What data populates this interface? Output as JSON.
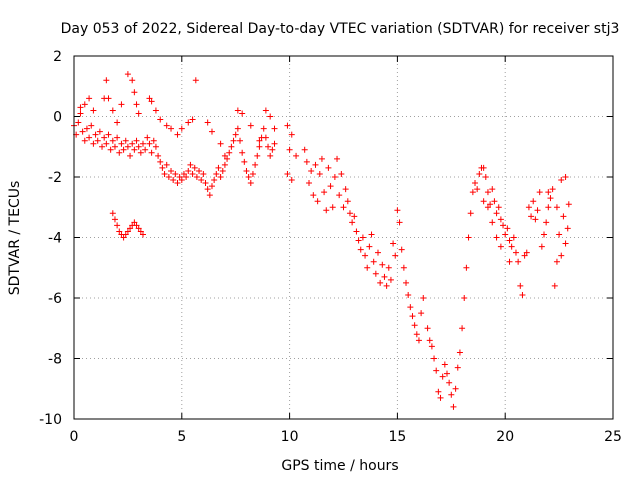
{
  "chart_data": {
    "type": "scatter",
    "title": "Day 053 of 2022, Sidereal Day-to-day VTEC variation (SDTVAR) for receiver stj3",
    "xlabel": "GPS time / hours",
    "ylabel": "SDTVAR / TECUs",
    "xlim": [
      0,
      25
    ],
    "ylim": [
      -10,
      2
    ],
    "x_ticks": [
      0,
      5,
      10,
      15,
      20,
      25
    ],
    "x_tick_labels": [
      "0",
      "5",
      "10",
      "15",
      "20",
      "25"
    ],
    "y_ticks": [
      2,
      0,
      -2,
      -4,
      -6,
      -8,
      -10
    ],
    "y_tick_labels": [
      "2",
      "0",
      "-2",
      "-4",
      "-6",
      "-8",
      "-10"
    ],
    "grid": true,
    "marker": "plus",
    "color": "#ff0000",
    "series": [
      {
        "name": "main trace",
        "points": [
          [
            0.0,
            -0.3
          ],
          [
            0.1,
            -0.6
          ],
          [
            0.2,
            -0.2
          ],
          [
            0.3,
            0.1
          ],
          [
            0.4,
            -0.5
          ],
          [
            0.5,
            -0.8
          ],
          [
            0.6,
            -0.4
          ],
          [
            0.7,
            -0.7
          ],
          [
            0.8,
            -0.3
          ],
          [
            0.9,
            -0.9
          ],
          [
            1.0,
            -0.6
          ],
          [
            1.1,
            -0.8
          ],
          [
            1.2,
            -0.5
          ],
          [
            1.3,
            -1.0
          ],
          [
            1.4,
            -0.7
          ],
          [
            1.5,
            -0.9
          ],
          [
            1.6,
            -0.6
          ],
          [
            1.7,
            -1.1
          ],
          [
            1.8,
            -0.8
          ],
          [
            1.9,
            -1.0
          ],
          [
            2.0,
            -0.7
          ],
          [
            2.1,
            -1.2
          ],
          [
            2.2,
            -0.9
          ],
          [
            2.3,
            -1.1
          ],
          [
            2.4,
            -0.8
          ],
          [
            2.5,
            -1.0
          ],
          [
            2.6,
            -1.3
          ],
          [
            2.7,
            -0.9
          ],
          [
            2.8,
            -1.1
          ],
          [
            2.9,
            -0.8
          ],
          [
            3.0,
            -1.0
          ],
          [
            3.1,
            -1.2
          ],
          [
            3.2,
            -0.9
          ],
          [
            3.3,
            -1.1
          ],
          [
            3.4,
            -0.7
          ],
          [
            3.5,
            -0.9
          ],
          [
            3.6,
            -1.2
          ],
          [
            3.7,
            -0.8
          ],
          [
            3.8,
            -1.0
          ],
          [
            3.9,
            -1.3
          ],
          [
            4.0,
            -1.5
          ],
          [
            4.1,
            -1.7
          ],
          [
            4.2,
            -1.9
          ],
          [
            4.3,
            -1.6
          ],
          [
            4.4,
            -2.0
          ],
          [
            4.5,
            -1.8
          ],
          [
            4.6,
            -2.1
          ],
          [
            4.7,
            -1.9
          ],
          [
            4.8,
            -2.2
          ],
          [
            4.9,
            -2.0
          ],
          [
            5.0,
            -2.1
          ],
          [
            5.1,
            -1.9
          ],
          [
            5.2,
            -2.0
          ],
          [
            5.3,
            -1.8
          ],
          [
            5.4,
            -1.6
          ],
          [
            5.5,
            -1.9
          ],
          [
            5.6,
            -1.7
          ],
          [
            5.7,
            -2.0
          ],
          [
            5.8,
            -1.8
          ],
          [
            5.9,
            -2.1
          ],
          [
            6.0,
            -1.9
          ],
          [
            6.1,
            -2.2
          ],
          [
            6.2,
            -2.4
          ],
          [
            6.3,
            -2.6
          ],
          [
            6.4,
            -2.3
          ],
          [
            6.5,
            -2.1
          ],
          [
            6.6,
            -1.9
          ],
          [
            6.7,
            -1.7
          ],
          [
            6.8,
            -2.0
          ],
          [
            6.9,
            -1.8
          ],
          [
            7.0,
            -1.6
          ],
          [
            7.1,
            -1.4
          ],
          [
            7.2,
            -1.2
          ],
          [
            7.3,
            -1.0
          ],
          [
            7.4,
            -0.8
          ],
          [
            7.5,
            -0.6
          ],
          [
            7.6,
            -0.4
          ],
          [
            7.7,
            -0.8
          ],
          [
            7.8,
            -1.2
          ],
          [
            7.9,
            -1.5
          ],
          [
            8.0,
            -1.8
          ],
          [
            8.1,
            -2.0
          ],
          [
            8.2,
            -2.2
          ],
          [
            8.3,
            -1.9
          ],
          [
            8.4,
            -1.6
          ],
          [
            8.5,
            -1.3
          ],
          [
            8.6,
            -1.0
          ],
          [
            8.7,
            -0.7
          ],
          [
            8.8,
            -0.4
          ],
          [
            8.9,
            -0.7
          ],
          [
            9.0,
            -1.0
          ],
          [
            9.1,
            -1.3
          ],
          [
            9.2,
            -1.1
          ],
          [
            9.3,
            -0.9
          ]
        ]
      },
      {
        "name": "upper excursions",
        "points": [
          [
            0.3,
            0.3
          ],
          [
            0.5,
            0.4
          ],
          [
            0.7,
            0.6
          ],
          [
            0.9,
            0.2
          ],
          [
            1.4,
            0.6
          ],
          [
            1.5,
            1.2
          ],
          [
            1.6,
            0.6
          ],
          [
            1.8,
            0.2
          ],
          [
            2.0,
            -0.2
          ],
          [
            2.2,
            0.4
          ],
          [
            2.5,
            1.4
          ],
          [
            2.7,
            1.2
          ],
          [
            2.8,
            0.8
          ],
          [
            2.9,
            0.4
          ],
          [
            3.0,
            0.1
          ],
          [
            3.5,
            0.6
          ],
          [
            3.6,
            0.5
          ],
          [
            3.8,
            0.2
          ],
          [
            4.0,
            -0.1
          ],
          [
            4.3,
            -0.3
          ],
          [
            4.5,
            -0.4
          ],
          [
            4.8,
            -0.6
          ],
          [
            5.0,
            -0.4
          ],
          [
            5.3,
            -0.2
          ],
          [
            5.5,
            -0.1
          ],
          [
            5.65,
            1.2
          ],
          [
            6.2,
            -0.2
          ],
          [
            6.4,
            -0.5
          ],
          [
            6.8,
            -0.9
          ],
          [
            7.0,
            -1.3
          ],
          [
            7.6,
            0.2
          ],
          [
            7.8,
            0.1
          ],
          [
            8.2,
            -0.3
          ],
          [
            8.6,
            -0.8
          ],
          [
            8.9,
            0.2
          ],
          [
            9.1,
            0.0
          ],
          [
            9.3,
            -0.4
          ]
        ]
      },
      {
        "name": "isolated arc",
        "points": [
          [
            1.8,
            -3.2
          ],
          [
            1.9,
            -3.4
          ],
          [
            2.0,
            -3.6
          ],
          [
            2.1,
            -3.8
          ],
          [
            2.2,
            -3.9
          ],
          [
            2.3,
            -4.0
          ],
          [
            2.4,
            -3.9
          ],
          [
            2.5,
            -3.8
          ],
          [
            2.6,
            -3.7
          ],
          [
            2.7,
            -3.6
          ],
          [
            2.8,
            -3.5
          ],
          [
            2.9,
            -3.6
          ],
          [
            3.0,
            -3.7
          ],
          [
            3.1,
            -3.8
          ],
          [
            3.2,
            -3.9
          ]
        ]
      },
      {
        "name": "sparse points",
        "points": [
          [
            9.9,
            -0.3
          ],
          [
            10.1,
            -0.6
          ],
          [
            10.0,
            -1.1
          ],
          [
            9.9,
            -1.9
          ],
          [
            10.1,
            -2.1
          ],
          [
            10.3,
            -1.3
          ]
        ]
      },
      {
        "name": "decline 10.7-13",
        "points": [
          [
            10.7,
            -1.1
          ],
          [
            10.8,
            -1.5
          ],
          [
            10.9,
            -2.2
          ],
          [
            11.0,
            -1.8
          ],
          [
            11.1,
            -2.6
          ],
          [
            11.2,
            -1.6
          ],
          [
            11.3,
            -2.8
          ],
          [
            11.4,
            -1.9
          ],
          [
            11.5,
            -1.4
          ],
          [
            11.6,
            -2.5
          ],
          [
            11.7,
            -3.1
          ],
          [
            11.8,
            -1.7
          ],
          [
            11.9,
            -2.3
          ],
          [
            12.0,
            -3.0
          ],
          [
            12.1,
            -2.0
          ],
          [
            12.2,
            -1.4
          ],
          [
            12.3,
            -2.6
          ],
          [
            12.4,
            -1.9
          ],
          [
            12.5,
            -3.0
          ],
          [
            12.6,
            -2.4
          ],
          [
            12.7,
            -2.8
          ],
          [
            12.8,
            -3.2
          ],
          [
            12.9,
            -3.5
          ],
          [
            13.0,
            -3.3
          ],
          [
            13.1,
            -3.8
          ],
          [
            13.2,
            -4.1
          ],
          [
            13.3,
            -4.4
          ],
          [
            13.4,
            -4.0
          ]
        ]
      },
      {
        "name": "decline 13.5-16.5",
        "points": [
          [
            13.5,
            -4.6
          ],
          [
            13.6,
            -5.0
          ],
          [
            13.7,
            -4.3
          ],
          [
            13.8,
            -3.9
          ],
          [
            13.9,
            -4.8
          ],
          [
            14.0,
            -5.2
          ],
          [
            14.1,
            -4.5
          ],
          [
            14.2,
            -5.5
          ],
          [
            14.3,
            -4.9
          ],
          [
            14.4,
            -5.3
          ],
          [
            14.5,
            -5.6
          ],
          [
            14.6,
            -5.0
          ],
          [
            14.7,
            -5.4
          ],
          [
            14.8,
            -4.2
          ],
          [
            14.9,
            -4.6
          ],
          [
            15.0,
            -3.1
          ],
          [
            15.1,
            -3.5
          ],
          [
            15.2,
            -4.4
          ],
          [
            15.3,
            -5.0
          ],
          [
            15.4,
            -5.5
          ],
          [
            15.5,
            -5.9
          ],
          [
            15.6,
            -6.3
          ],
          [
            15.7,
            -6.6
          ],
          [
            15.8,
            -6.9
          ],
          [
            15.9,
            -7.2
          ],
          [
            16.0,
            -7.4
          ],
          [
            16.1,
            -6.5
          ],
          [
            16.2,
            -6.0
          ],
          [
            16.4,
            -7.0
          ],
          [
            16.5,
            -7.4
          ]
        ]
      },
      {
        "name": "trough",
        "points": [
          [
            16.6,
            -7.6
          ],
          [
            16.7,
            -8.0
          ],
          [
            16.8,
            -8.4
          ],
          [
            16.9,
            -9.1
          ],
          [
            17.0,
            -9.3
          ],
          [
            17.1,
            -8.6
          ],
          [
            17.2,
            -8.2
          ],
          [
            17.3,
            -8.5
          ],
          [
            17.4,
            -8.8
          ],
          [
            17.5,
            -9.2
          ],
          [
            17.6,
            -9.6
          ],
          [
            17.7,
            -9.0
          ],
          [
            17.8,
            -8.3
          ],
          [
            17.9,
            -7.8
          ],
          [
            18.0,
            -7.0
          ],
          [
            18.1,
            -6.0
          ],
          [
            18.2,
            -5.0
          ],
          [
            18.3,
            -4.0
          ],
          [
            18.4,
            -3.2
          ],
          [
            18.5,
            -2.5
          ],
          [
            18.6,
            -2.2
          ],
          [
            18.7,
            -2.4
          ],
          [
            18.8,
            -1.9
          ],
          [
            18.9,
            -1.7
          ],
          [
            19.0,
            -1.7
          ]
        ]
      },
      {
        "name": "post-trough",
        "points": [
          [
            19.1,
            -2.0
          ],
          [
            19.2,
            -2.5
          ],
          [
            19.3,
            -2.9
          ],
          [
            19.4,
            -2.4
          ],
          [
            19.5,
            -2.8
          ],
          [
            19.6,
            -3.2
          ],
          [
            19.7,
            -3.0
          ],
          [
            19.8,
            -3.4
          ],
          [
            19.9,
            -3.6
          ],
          [
            20.0,
            -3.9
          ],
          [
            20.1,
            -3.7
          ],
          [
            20.2,
            -4.1
          ],
          [
            20.3,
            -4.3
          ],
          [
            20.4,
            -4.0
          ],
          [
            20.5,
            -4.5
          ],
          [
            20.6,
            -4.8
          ],
          [
            20.7,
            -5.6
          ],
          [
            20.8,
            -5.9
          ],
          [
            20.9,
            -4.6
          ],
          [
            20.2,
            -4.8
          ],
          [
            19.4,
            -3.5
          ],
          [
            19.6,
            -4.0
          ],
          [
            19.8,
            -4.3
          ],
          [
            19.2,
            -3.0
          ],
          [
            19.0,
            -2.8
          ]
        ]
      },
      {
        "name": "final segment",
        "points": [
          [
            21.0,
            -4.5
          ],
          [
            21.1,
            -3.0
          ],
          [
            21.2,
            -3.3
          ],
          [
            21.3,
            -2.8
          ],
          [
            21.4,
            -3.4
          ],
          [
            21.5,
            -3.1
          ],
          [
            21.6,
            -2.5
          ],
          [
            21.7,
            -4.3
          ],
          [
            21.8,
            -3.9
          ],
          [
            21.9,
            -3.5
          ],
          [
            22.0,
            -3.0
          ],
          [
            22.1,
            -2.7
          ],
          [
            22.2,
            -2.4
          ],
          [
            22.3,
            -5.6
          ],
          [
            22.4,
            -4.8
          ],
          [
            22.5,
            -3.9
          ],
          [
            22.6,
            -2.1
          ],
          [
            22.7,
            -3.3
          ],
          [
            22.8,
            -2.0
          ],
          [
            22.9,
            -3.7
          ],
          [
            22.95,
            -2.9
          ],
          [
            22.8,
            -4.2
          ],
          [
            22.6,
            -4.6
          ],
          [
            22.4,
            -3.0
          ],
          [
            22.0,
            -2.5
          ]
        ]
      }
    ]
  }
}
